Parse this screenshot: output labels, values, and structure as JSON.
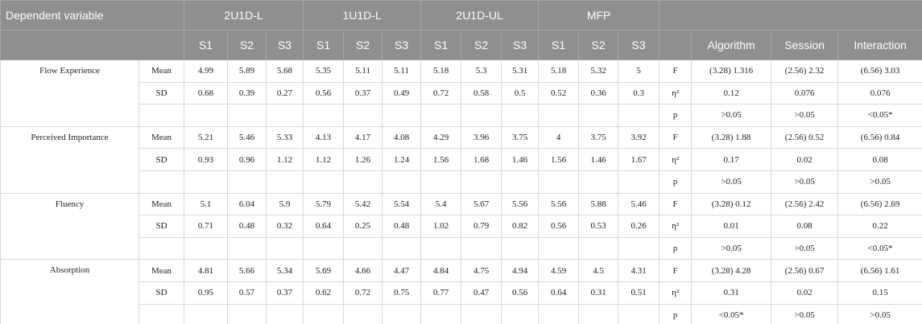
{
  "header": {
    "title": "Dependent variable",
    "groups": [
      {
        "name": "2U1D-L",
        "sessions": [
          "S1",
          "S2",
          "S3"
        ]
      },
      {
        "name": "1U1D-L",
        "sessions": [
          "S1",
          "S2",
          "S3"
        ]
      },
      {
        "name": "2U1D-UL",
        "sessions": [
          "S1",
          "S2",
          "S3"
        ]
      },
      {
        "name": "MFP",
        "sessions": [
          "S1",
          "S2",
          "S3"
        ]
      }
    ],
    "effects": [
      "Algorithm",
      "Session",
      "Interaction"
    ]
  },
  "variables": [
    {
      "name": "Flow Experience",
      "rows": [
        {
          "stat": "Mean",
          "values": [
            4.99,
            5.89,
            5.68,
            5.35,
            5.11,
            5.11,
            5.18,
            5.3,
            5.31,
            5.18,
            5.32,
            5
          ],
          "test": "F",
          "results": [
            "(3.28) 1.316",
            "(2.56) 2.32",
            "(6.56) 3.03"
          ]
        },
        {
          "stat": "SD",
          "values": [
            0.68,
            0.39,
            0.27,
            0.56,
            0.37,
            0.49,
            0.72,
            0.58,
            0.5,
            0.52,
            0.36,
            0.3
          ],
          "test": "η²",
          "results": [
            0.12,
            0.076,
            0.076
          ]
        },
        {
          "test": "p",
          "results": [
            ">0.05",
            ">0.05",
            "<0.05*"
          ]
        }
      ]
    },
    {
      "name": "Perceived Importance",
      "rows": [
        {
          "stat": "Mean",
          "values": [
            5.21,
            5.46,
            5.33,
            4.13,
            4.17,
            4.08,
            4.29,
            3.96,
            3.75,
            4,
            3.75,
            3.92
          ],
          "test": "F",
          "results": [
            "(3.28) 1.88",
            "(2.56) 0.52",
            "(6.56) 0.84"
          ]
        },
        {
          "stat": "SD",
          "values": [
            0.93,
            0.96,
            1.12,
            1.12,
            1.26,
            1.24,
            1.56,
            1.68,
            1.46,
            1.56,
            1.46,
            1.67
          ],
          "test": "η²",
          "results": [
            0.17,
            0.02,
            0.08
          ]
        },
        {
          "test": "p",
          "results": [
            ">0.05",
            ">0.05",
            ">0.05"
          ]
        }
      ]
    },
    {
      "name": "Fluency",
      "rows": [
        {
          "stat": "Mean",
          "values": [
            5.1,
            6.04,
            5.9,
            5.79,
            5.42,
            5.54,
            5.4,
            5.67,
            5.56,
            5.56,
            5.88,
            5.46
          ],
          "test": "F",
          "results": [
            "(3.28) 0.12",
            "(2.56) 2.42",
            "(6.56) 2.69"
          ]
        },
        {
          "stat": "SD",
          "values": [
            0.71,
            0.48,
            0.32,
            0.64,
            0.25,
            0.48,
            1.02,
            0.79,
            0.82,
            0.56,
            0.53,
            0.26
          ],
          "test": "η²",
          "results": [
            0.01,
            0.08,
            0.22
          ]
        },
        {
          "test": "p",
          "results": [
            ">0.05",
            ">0.05",
            "<0.05*"
          ]
        }
      ]
    },
    {
      "name": "Absorption",
      "rows": [
        {
          "stat": "Mean",
          "values": [
            4.81,
            5.66,
            5.34,
            5.69,
            4.66,
            4.47,
            4.84,
            4.75,
            4.94,
            4.59,
            4.5,
            4.31
          ],
          "test": "F",
          "results": [
            "(3.28) 4.28",
            "(2.56) 0.67",
            "(6.56) 1.61"
          ]
        },
        {
          "stat": "SD",
          "values": [
            0.95,
            0.57,
            0.37,
            0.62,
            0.72,
            0.75,
            0.77,
            0.47,
            0.56,
            0.64,
            0.31,
            0.51
          ],
          "test": "η²",
          "results": [
            0.31,
            0.02,
            0.15
          ]
        },
        {
          "test": "p",
          "results": [
            "<0.05*",
            ">0.05",
            ">0.05"
          ]
        }
      ]
    }
  ]
}
